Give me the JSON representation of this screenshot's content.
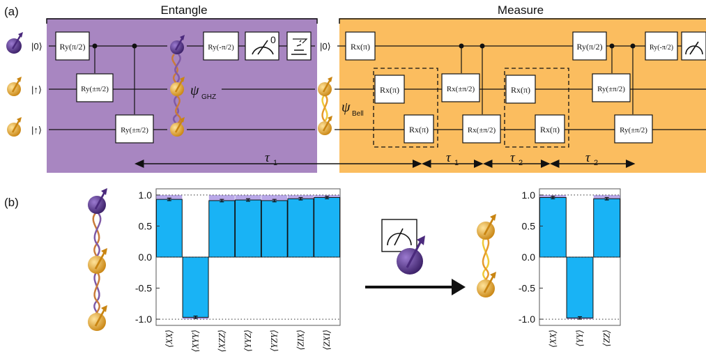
{
  "panel_labels": {
    "a": "(a)",
    "b": "(b)"
  },
  "sections": {
    "entangle": "Entangle",
    "measure": "Measure"
  },
  "colors": {
    "entangle_bg": "#a886c1",
    "measure_bg": "#fbbd5f",
    "bar": "#19b3f5",
    "ideal": "#b9a8e8",
    "qubit_purple": "#4b2a7d",
    "qubit_gold": "#e2a12a"
  },
  "circuit": {
    "inputs": [
      "|0⟩",
      "|↑⟩",
      "|↑⟩"
    ],
    "measure_input": "|0⟩",
    "readout_zero": "0",
    "state_ghz": "ψ",
    "state_ghz_sub": "GHZ",
    "state_bell": "ψ",
    "state_bell_sub": "Bell",
    "gate_ry_half_pos": "Ry(π/2)",
    "gate_ry_half_neg": "Ry(-π/2)",
    "gate_ry_pm": "Ry(±π/2)",
    "gate_rx_pi": "Rx(π)",
    "gate_rx_pm": "Rx(±π/2)",
    "icons": [
      "measurement-meter-icon",
      "reset-pulse-icon"
    ]
  },
  "delays": {
    "tau1": "τ",
    "tau1_sub": "1",
    "tau2": "τ",
    "tau2_sub": "2"
  },
  "chart_data": [
    {
      "type": "bar",
      "categories": [
        "⟨XX⟩",
        "⟨XYY⟩",
        "⟨XZZ⟩",
        "⟨YYZ⟩",
        "⟨YZY⟩",
        "⟨ZIX⟩",
        "⟨ZXI⟩"
      ],
      "category_parts": [
        [
          "XX"
        ],
        [
          "XYY"
        ],
        [
          "XZZ"
        ],
        [
          "YYZ"
        ],
        [
          "YZY"
        ],
        [
          "ZIX"
        ],
        [
          "ZXI"
        ]
      ],
      "values": [
        0.93,
        -0.97,
        0.91,
        0.92,
        0.91,
        0.94,
        0.96
      ],
      "errors": [
        0.02,
        0.02,
        0.02,
        0.02,
        0.02,
        0.02,
        0.02
      ],
      "ideal": [
        1,
        -1,
        1,
        1,
        1,
        1,
        1
      ],
      "yticks": [
        "1.0",
        "0.5",
        "0.0",
        "-0.5",
        "-1.0"
      ],
      "ytick_values": [
        1.0,
        0.5,
        0.0,
        -0.5,
        -1.0
      ],
      "ylim": [
        -1.1,
        1.1
      ],
      "reference_lines": [
        1.0,
        0.0,
        -1.0
      ]
    },
    {
      "type": "bar",
      "categories": [
        "⟨XX⟩",
        "⟨YY⟩",
        "⟨ZZ⟩"
      ],
      "category_parts": [
        [
          "XX"
        ],
        [
          "YY"
        ],
        [
          "ZZ"
        ]
      ],
      "values": [
        0.96,
        -0.98,
        0.94
      ],
      "errors": [
        0.02,
        0.02,
        0.02
      ],
      "ideal": [
        1,
        -1,
        1
      ],
      "yticks": [
        "1.0",
        "0.5",
        "0.0",
        "-0.5",
        "-1.0"
      ],
      "ytick_values": [
        1.0,
        0.5,
        0.0,
        -0.5,
        -1.0
      ],
      "ylim": [
        -1.1,
        1.1
      ],
      "reference_lines": [
        1.0,
        0.0,
        -1.0
      ]
    }
  ]
}
